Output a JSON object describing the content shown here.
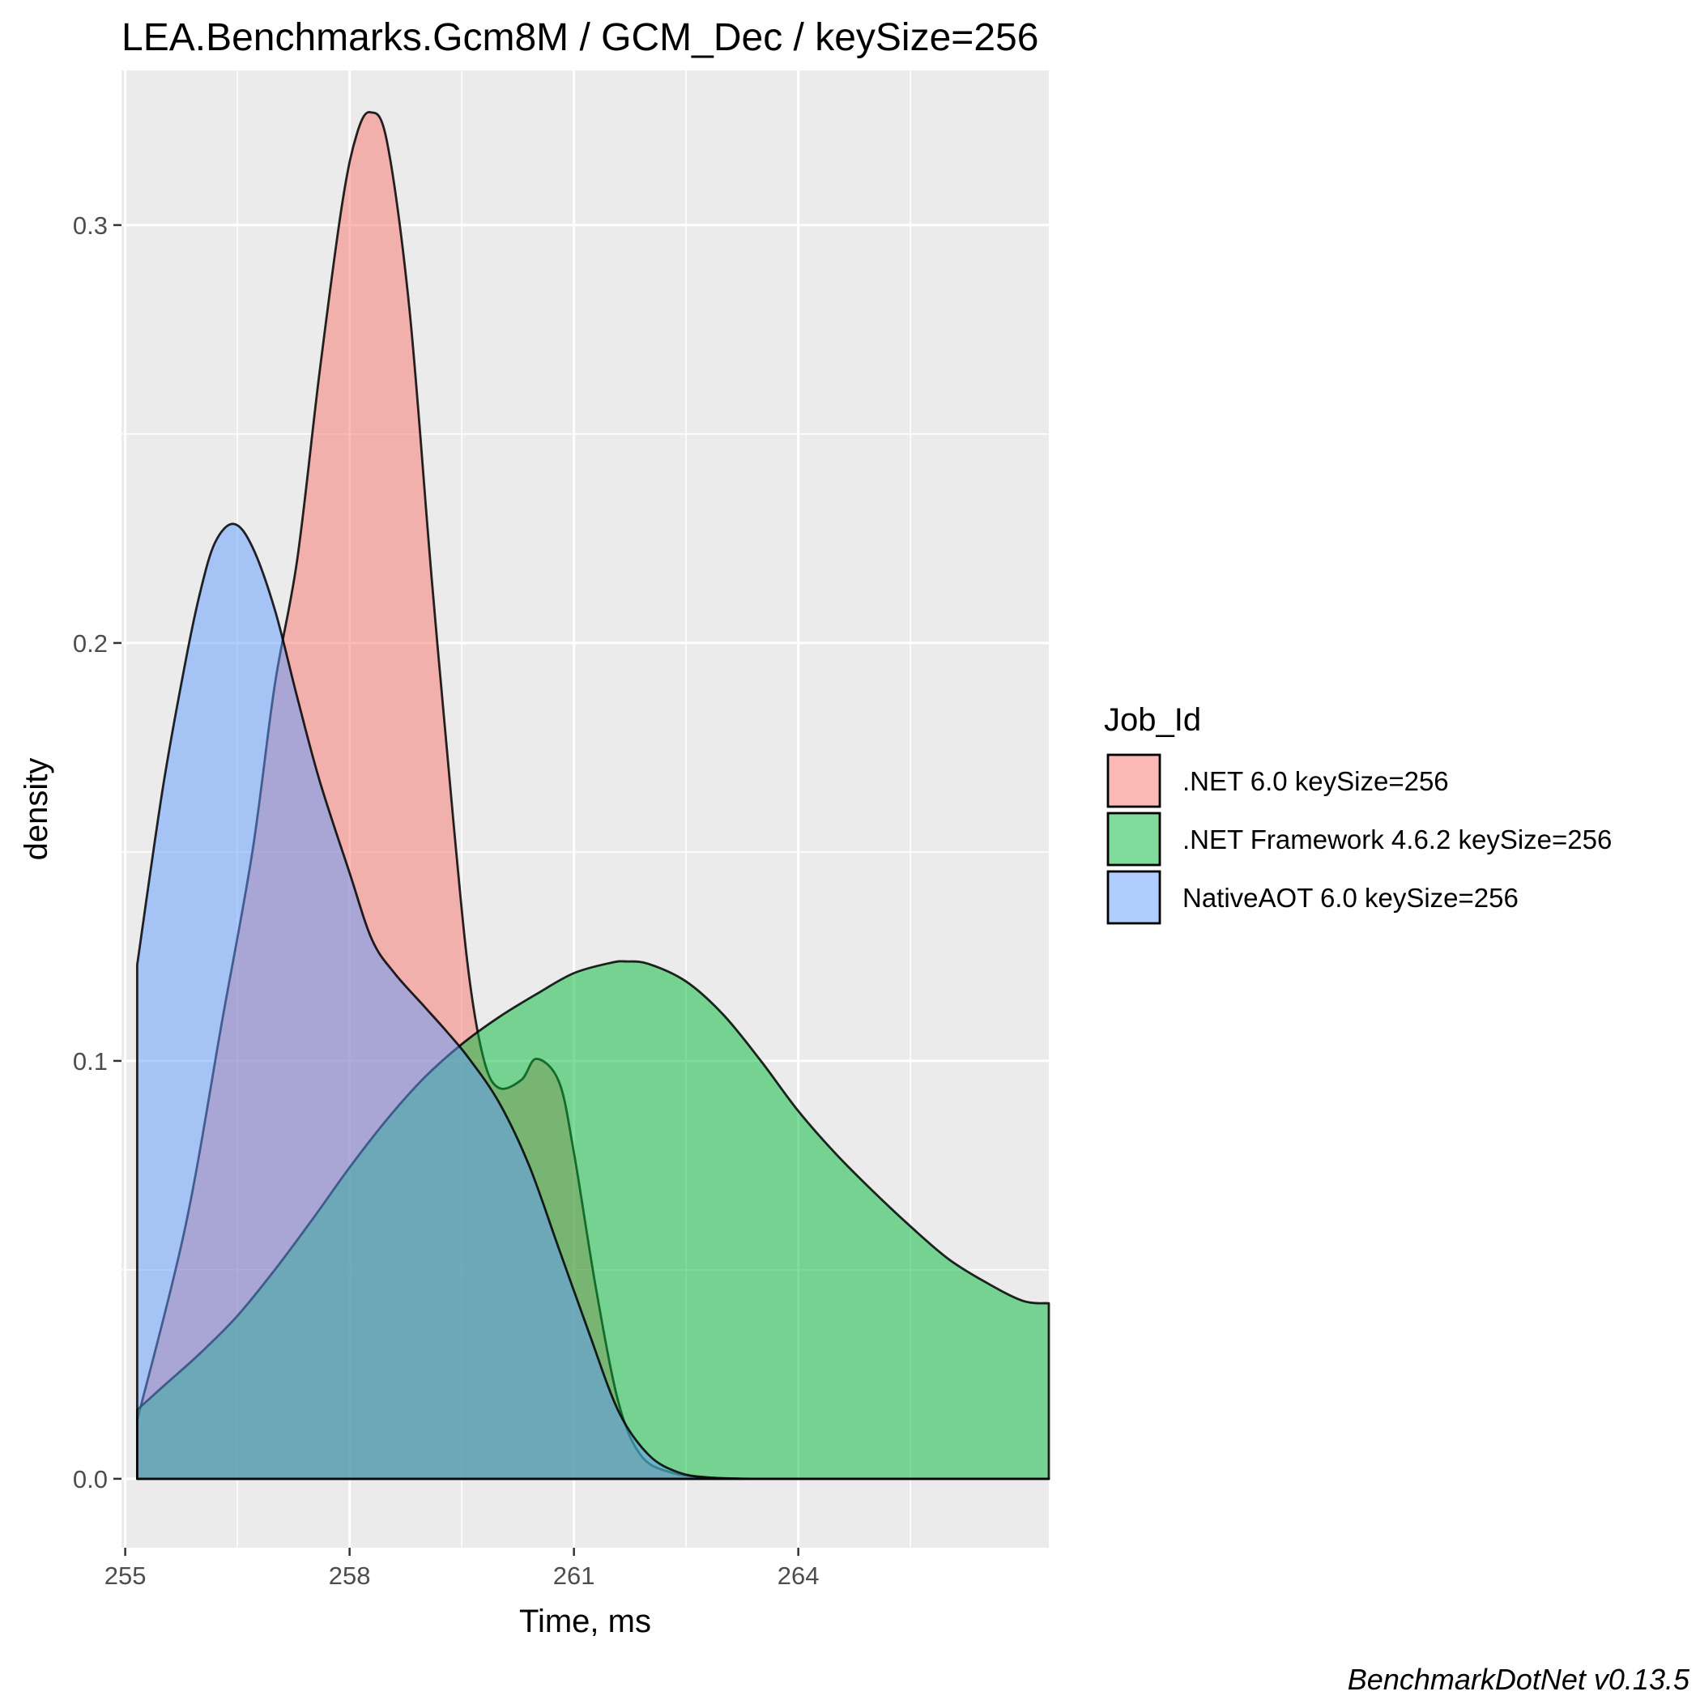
{
  "chart_data": {
    "type": "area",
    "subtype": "density",
    "title": "LEA.Benchmarks.Gcm8M / GCM_Dec / keySize=256",
    "xlabel": "Time, ms",
    "ylabel": "density",
    "xlim": [
      254.95,
      267.35
    ],
    "ylim": [
      -0.0165,
      0.337
    ],
    "x_ticks": [
      255,
      258,
      261,
      264
    ],
    "x_tick_labels": [
      "255",
      "258",
      "261",
      "264"
    ],
    "x_minor_ticks": [
      256.5,
      259.5,
      262.5,
      265.5
    ],
    "y_ticks": [
      0.0,
      0.1,
      0.2,
      0.3
    ],
    "y_tick_labels": [
      "0.0",
      "0.1",
      "0.2",
      "0.3"
    ],
    "y_minor_ticks": [
      0.05,
      0.15,
      0.25
    ],
    "grid": true,
    "legend": {
      "title": "Job_Id",
      "placement": "right"
    },
    "fill_opacity": 0.5,
    "series": [
      {
        "name": ".NET 6.0 keySize=256",
        "color": "#F8766D",
        "x": [
          255.16,
          255.8,
          256.3,
          256.7,
          257.0,
          257.3,
          257.6,
          257.9,
          258.1,
          258.28,
          258.5,
          258.8,
          259.1,
          259.4,
          259.6,
          259.8,
          260.0,
          260.3,
          260.5,
          260.8,
          261.0,
          261.3,
          261.6,
          261.9,
          262.3,
          262.8,
          263.4,
          264.3,
          267.35
        ],
        "y": [
          0.014,
          0.06,
          0.11,
          0.15,
          0.19,
          0.22,
          0.265,
          0.305,
          0.322,
          0.327,
          0.32,
          0.28,
          0.215,
          0.155,
          0.12,
          0.1,
          0.0935,
          0.0955,
          0.1005,
          0.095,
          0.078,
          0.045,
          0.018,
          0.0055,
          0.0015,
          0.0003,
          0.0,
          0.0,
          0.0
        ]
      },
      {
        "name": ".NET Framework 4.6.2 keySize=256",
        "color": "#00BA38",
        "x": [
          255.16,
          255.5,
          256.0,
          256.5,
          257.0,
          257.5,
          258.0,
          258.5,
          259.0,
          259.5,
          260.0,
          260.5,
          261.0,
          261.5,
          261.7,
          262.0,
          262.5,
          263.0,
          263.5,
          264.0,
          264.5,
          265.0,
          265.5,
          266.0,
          266.5,
          267.0,
          267.35
        ],
        "y": [
          0.0165,
          0.022,
          0.03,
          0.039,
          0.05,
          0.062,
          0.0745,
          0.086,
          0.096,
          0.104,
          0.1105,
          0.116,
          0.121,
          0.1235,
          0.1238,
          0.1232,
          0.119,
          0.111,
          0.1,
          0.088,
          0.0778,
          0.0688,
          0.0604,
          0.0527,
          0.0471,
          0.0426,
          0.042
        ]
      },
      {
        "name": "NativeAOT 6.0 keySize=256",
        "color": "#619CFF",
        "x": [
          255.16,
          255.5,
          255.8,
          256.0,
          256.2,
          256.45,
          256.7,
          257.0,
          257.3,
          257.6,
          258.0,
          258.3,
          258.6,
          259.0,
          259.3,
          259.6,
          260.0,
          260.4,
          260.8,
          261.2,
          261.6,
          262.0,
          262.4,
          262.8,
          263.3,
          263.8,
          267.35
        ],
        "y": [
          0.123,
          0.165,
          0.195,
          0.212,
          0.224,
          0.2285,
          0.223,
          0.208,
          0.187,
          0.167,
          0.145,
          0.129,
          0.121,
          0.113,
          0.107,
          0.1005,
          0.09,
          0.075,
          0.055,
          0.035,
          0.016,
          0.0057,
          0.0015,
          0.0003,
          0.0,
          0.0,
          0.0
        ]
      }
    ],
    "caption": "BenchmarkDotNet v0.13.5"
  }
}
